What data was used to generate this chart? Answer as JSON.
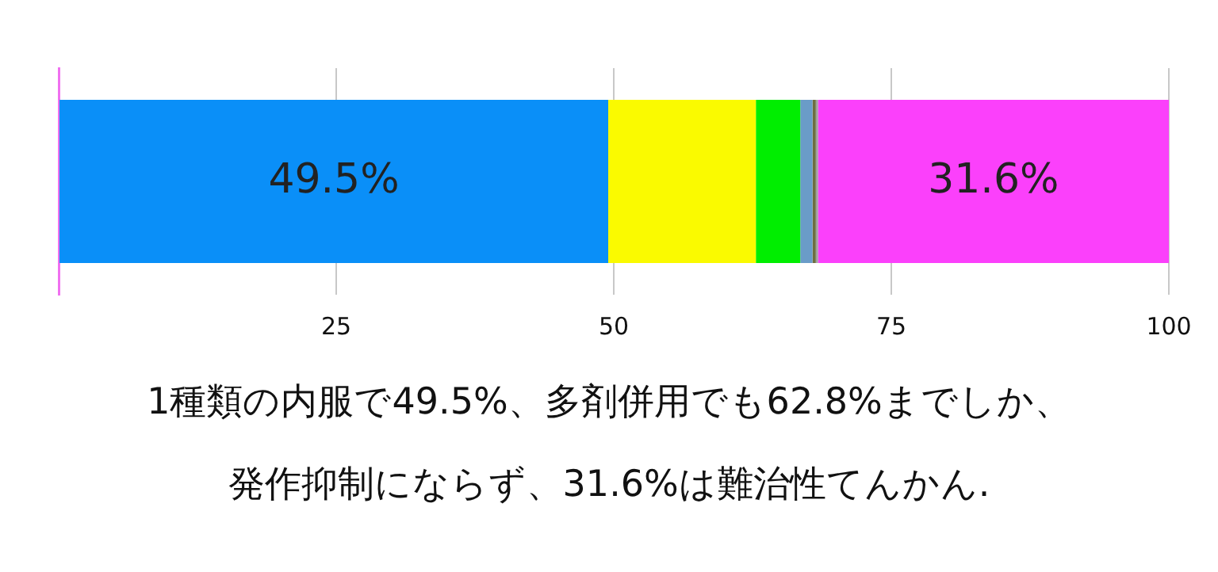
{
  "chart_data": {
    "type": "bar",
    "orientation": "horizontal",
    "stacked": true,
    "categories": [
      null
    ],
    "series": [
      {
        "color": "#0a8ff8",
        "values": [
          49.5
        ],
        "value_labels": [
          "49.5%"
        ]
      },
      {
        "color": "#fafa00",
        "values": [
          13.3
        ]
      },
      {
        "color": "#00ee00",
        "values": [
          4.0
        ]
      },
      {
        "color": "#6a9cc8",
        "values": [
          1.1
        ]
      },
      {
        "color": "#6e6e40",
        "values": [
          0.3
        ]
      },
      {
        "color": "#a0a0a0",
        "values": [
          0.2
        ]
      },
      {
        "color": "#fb40fb",
        "values": [
          31.6
        ],
        "value_labels": [
          "31.6%"
        ]
      }
    ],
    "xlim": [
      0,
      100
    ],
    "xticks": [
      {
        "value": 0,
        "label": null
      },
      25,
      50,
      75,
      100
    ],
    "grid": "x",
    "legend": false,
    "annotations": [
      "1種類の内服で49.5%、多剤併用でも62.8%までしか、",
      "発作抑制にならず、31.6%は難治性てんかん."
    ]
  }
}
